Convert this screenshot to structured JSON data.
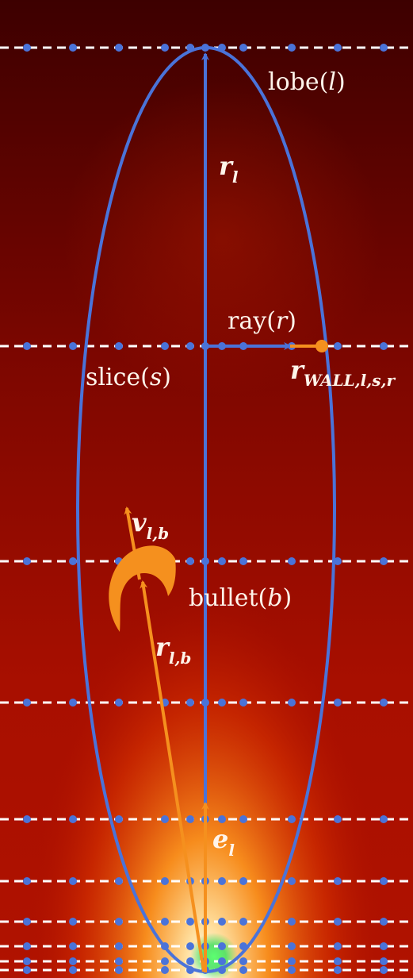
{
  "colors": {
    "background_dark": "#3a0000",
    "background_mid": "#a30d00",
    "glow_hot": "#ffb033",
    "core": "#38e05a",
    "lobe": "#4a73d9",
    "bullet": "#f5901e",
    "dash": "#ffffff"
  },
  "labels": {
    "lobe": {
      "word": "lobe",
      "open": "(",
      "var": "l",
      "close": ")"
    },
    "ray": {
      "word": "ray",
      "open": "(",
      "var": "r",
      "close": ")"
    },
    "slice": {
      "word": "slice",
      "open": "(",
      "var": "s",
      "close": ")"
    },
    "bullet": {
      "word": "bullet",
      "open": "(",
      "var": "b",
      "close": ")"
    },
    "r_lobe": {
      "sym": "r",
      "sub": "l"
    },
    "r_wall": {
      "sym": "r",
      "sub_roman": "WALL,",
      "sub_italic": "l,s,r"
    },
    "v_bullet": {
      "sym": "v",
      "sub": "l,b"
    },
    "r_bullet": {
      "sym": "r",
      "sub": "l,b"
    },
    "e_lobe": {
      "sym": "e",
      "sub": "l"
    }
  }
}
